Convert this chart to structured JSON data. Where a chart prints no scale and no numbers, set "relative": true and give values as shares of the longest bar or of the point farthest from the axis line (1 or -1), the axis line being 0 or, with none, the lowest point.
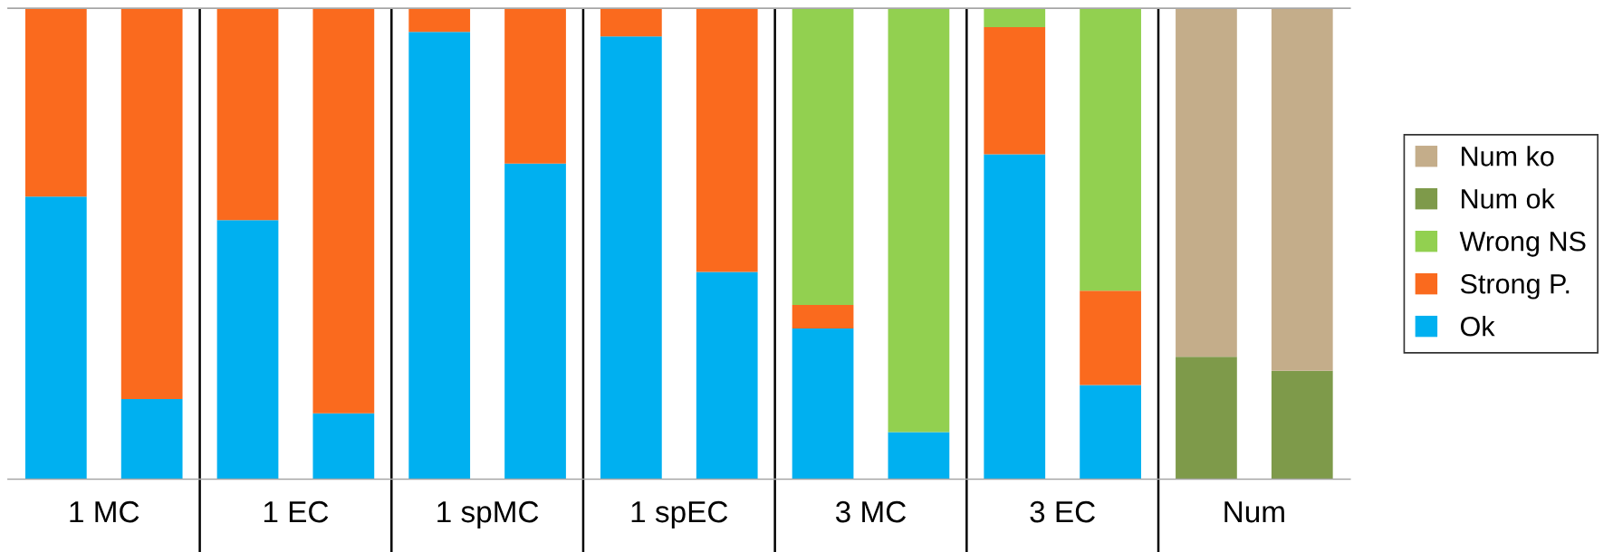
{
  "chart_data": {
    "type": "bar",
    "categories": [
      null,
      null,
      null,
      null,
      null,
      null,
      null,
      null,
      null,
      null,
      null,
      null,
      null,
      null
    ],
    "stacked": true,
    "relative": true,
    "legend": "right",
    "annotations": [
      "1 MC",
      "1 EC",
      "1 spMC",
      "1 spEC",
      "3 MC",
      "3 EC",
      "Num"
    ],
    "series": [
      {
        "name": "Ok",
        "color": "#00b0f0",
        "values": [
          0.6,
          0.17,
          0.55,
          0.14,
          0.95,
          0.67,
          0.94,
          0.44,
          0.32,
          0.1,
          0.69,
          0.2,
          0,
          0
        ]
      },
      {
        "name": "Strong P.",
        "color": "#fa6a1e",
        "values": [
          0.4,
          0.83,
          0.45,
          0.86,
          0.05,
          0.33,
          0.06,
          0.56,
          0.05,
          0,
          0.27,
          0.2,
          0,
          0
        ]
      },
      {
        "name": "Wrong NS",
        "color": "#92d050",
        "values": [
          0,
          0,
          0,
          0,
          0,
          0,
          0,
          0,
          0.63,
          0.9,
          0.04,
          0.6,
          0,
          0
        ]
      },
      {
        "name": "Num ok",
        "color": "#7e9a4a",
        "values": [
          0,
          0,
          0,
          0,
          0,
          0,
          0,
          0,
          0,
          0,
          0,
          0,
          0.26,
          0.23
        ]
      },
      {
        "name": "Num ko",
        "color": "#c4ad8a",
        "values": [
          0,
          0,
          0,
          0,
          0,
          0,
          0,
          0,
          0,
          0,
          0,
          0,
          0.74,
          0.77
        ]
      }
    ]
  }
}
